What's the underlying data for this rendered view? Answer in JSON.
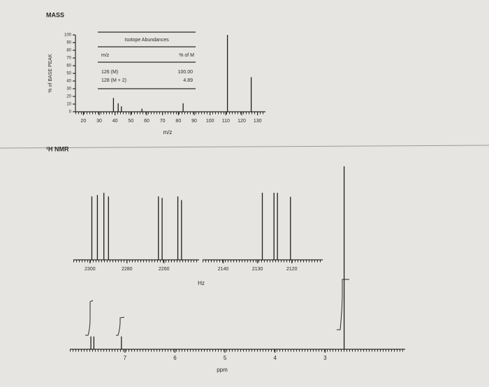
{
  "chart_data": [
    {
      "type": "bar",
      "title": "MASS",
      "x_label": "m/z",
      "y_label": "% of BASE PEAK",
      "x": [
        39,
        42,
        44,
        57,
        83,
        111,
        126
      ],
      "values": [
        18,
        11,
        7,
        4,
        11,
        100,
        45
      ],
      "color": "#1e1e1e",
      "xlim": [
        15,
        135
      ],
      "xticks": [
        20,
        30,
        40,
        50,
        60,
        70,
        80,
        90,
        100,
        110,
        120,
        130
      ],
      "ylim": [
        0,
        100
      ],
      "yticks": [
        0,
        10,
        20,
        30,
        40,
        50,
        60,
        70,
        80,
        90,
        100
      ],
      "table": {
        "title": "Isotope Abundances",
        "columns": [
          "m/z",
          "% of M"
        ],
        "rows": [
          [
            "126 (M)",
            "100.00"
          ],
          [
            "128 (M + 2)",
            "4.89"
          ]
        ]
      }
    },
    {
      "type": "bar",
      "title": "¹H NMR",
      "x_label": "ppm",
      "inset_x_label": "Hz",
      "x": [
        7.68,
        7.62,
        7.07,
        2.62
      ],
      "values": [
        7,
        7,
        7,
        100
      ],
      "color": "#1e1e1e",
      "xlim": [
        8.1,
        1.4
      ],
      "xticks": [
        7,
        6,
        5,
        4,
        3
      ],
      "insets": [
        {
          "xlim": [
            2309,
            2241
          ],
          "xticks": [
            2300,
            2280,
            2260
          ],
          "x": [
            2299,
            2296,
            2292.5,
            2290,
            2263,
            2261,
            2252.5,
            2250.5
          ],
          "values": [
            87,
            89,
            92,
            87,
            87,
            85,
            87,
            82
          ]
        },
        {
          "xlim": [
            2146,
            2111
          ],
          "xticks": [
            2140,
            2130,
            2120
          ],
          "x": [
            2128.6,
            2125.2,
            2124.2,
            2120.4
          ],
          "values": [
            100,
            100,
            100,
            94
          ]
        }
      ]
    }
  ]
}
